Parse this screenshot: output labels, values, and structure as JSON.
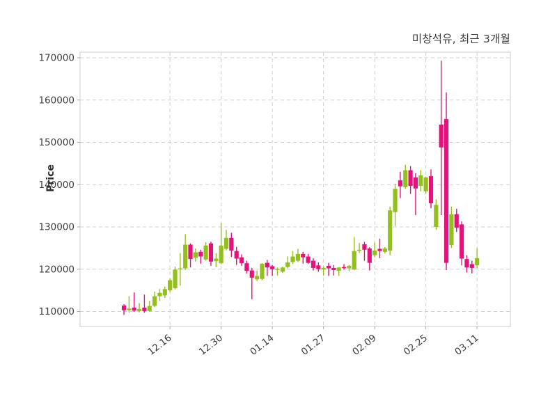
{
  "chart_data": {
    "type": "candlestick",
    "title": "미창석유, 최근 3개월",
    "ylabel": "Price",
    "xlabel": "",
    "grid": true,
    "legend": false,
    "ylim": [
      106500,
      171300
    ],
    "yticks": [
      110000,
      120000,
      130000,
      140000,
      150000,
      160000,
      170000
    ],
    "xticks": [
      {
        "index": 9,
        "label": "12.16"
      },
      {
        "index": 19,
        "label": "12.30"
      },
      {
        "index": 29,
        "label": "01.14"
      },
      {
        "index": 39,
        "label": "01.27"
      },
      {
        "index": 49,
        "label": "02.09"
      },
      {
        "index": 59,
        "label": "02.25"
      },
      {
        "index": 69,
        "label": "03.11"
      }
    ],
    "colors": {
      "up": "#93C01F",
      "down": "#E4127B",
      "grid": "#cfcfcf",
      "spine": "#d4d4d4",
      "tick": "#a8a8a8",
      "text": "#3c3c3c",
      "background": "#ffffff"
    },
    "candle_format": [
      "open",
      "high",
      "low",
      "close"
    ],
    "candles": [
      [
        111400,
        111700,
        109200,
        110300
      ],
      [
        110300,
        113600,
        109700,
        110700
      ],
      [
        110900,
        114500,
        109900,
        110200
      ],
      [
        110100,
        112000,
        109800,
        110600
      ],
      [
        110900,
        114000,
        109700,
        110100
      ],
      [
        110100,
        112500,
        109900,
        111300
      ],
      [
        111300,
        114700,
        111000,
        113600
      ],
      [
        113600,
        115300,
        112500,
        114400
      ],
      [
        113800,
        115900,
        113200,
        115300
      ],
      [
        115000,
        117800,
        114600,
        117400
      ],
      [
        115500,
        120600,
        115200,
        119900
      ],
      [
        120100,
        123800,
        116100,
        120200
      ],
      [
        120200,
        128300,
        119800,
        125800
      ],
      [
        125800,
        126100,
        120400,
        122400
      ],
      [
        122700,
        124900,
        121800,
        124000
      ],
      [
        124100,
        124600,
        121300,
        123000
      ],
      [
        122300,
        126400,
        122000,
        125600
      ],
      [
        126100,
        126500,
        120800,
        121800
      ],
      [
        121900,
        123800,
        120500,
        122500
      ],
      [
        121400,
        131000,
        121200,
        125600
      ],
      [
        124800,
        129300,
        124500,
        127400
      ],
      [
        127400,
        128600,
        122900,
        124400
      ],
      [
        124300,
        125300,
        121000,
        122500
      ],
      [
        122800,
        123500,
        120800,
        121400
      ],
      [
        121400,
        122000,
        119000,
        119600
      ],
      [
        119700,
        120300,
        112900,
        118000
      ],
      [
        117600,
        119700,
        117200,
        118400
      ],
      [
        117700,
        121400,
        117400,
        121300
      ],
      [
        121500,
        122200,
        118400,
        120400
      ],
      [
        120700,
        121000,
        118400,
        120000
      ],
      [
        119900,
        120400,
        118500,
        120100
      ],
      [
        119400,
        120600,
        119100,
        120400
      ],
      [
        120500,
        123000,
        120200,
        121600
      ],
      [
        121700,
        124300,
        121200,
        123000
      ],
      [
        122000,
        124800,
        121700,
        123600
      ],
      [
        123600,
        124100,
        121300,
        122800
      ],
      [
        123000,
        123600,
        121300,
        121500
      ],
      [
        122000,
        122600,
        119700,
        120300
      ],
      [
        120900,
        121600,
        119400,
        120000
      ],
      [
        119900,
        120600,
        118500,
        120300
      ],
      [
        120800,
        121500,
        118400,
        120200
      ],
      [
        120300,
        121000,
        118500,
        119800
      ],
      [
        119600,
        120500,
        118400,
        120400
      ],
      [
        120500,
        121200,
        119900,
        120300
      ],
      [
        120200,
        121000,
        119500,
        120800
      ],
      [
        119900,
        127600,
        119800,
        124300
      ],
      [
        124500,
        126200,
        123800,
        124600
      ],
      [
        125900,
        126500,
        122000,
        124600
      ],
      [
        124900,
        125200,
        119700,
        121500
      ],
      [
        123300,
        126300,
        122800,
        124400
      ],
      [
        124800,
        127200,
        122600,
        124300
      ],
      [
        124100,
        125200,
        123700,
        124900
      ],
      [
        124400,
        134800,
        123300,
        133900
      ],
      [
        133500,
        140200,
        130200,
        139000
      ],
      [
        141000,
        143000,
        136800,
        139600
      ],
      [
        139400,
        144700,
        139000,
        143400
      ],
      [
        143400,
        144400,
        137800,
        139700
      ],
      [
        141700,
        142700,
        132800,
        139100
      ],
      [
        139700,
        143400,
        138400,
        142200
      ],
      [
        138400,
        141900,
        137800,
        141700
      ],
      [
        142000,
        143600,
        134400,
        135600
      ],
      [
        130000,
        136500,
        129300,
        135200
      ],
      [
        154200,
        169300,
        132800,
        148800
      ],
      [
        155500,
        161800,
        119800,
        121500
      ],
      [
        125700,
        134800,
        125000,
        133000
      ],
      [
        133000,
        134300,
        128800,
        129800
      ],
      [
        130600,
        131300,
        120900,
        122500
      ],
      [
        122400,
        123300,
        119200,
        120400
      ],
      [
        121200,
        122000,
        119000,
        120300
      ],
      [
        120900,
        125000,
        120200,
        122600
      ]
    ]
  }
}
